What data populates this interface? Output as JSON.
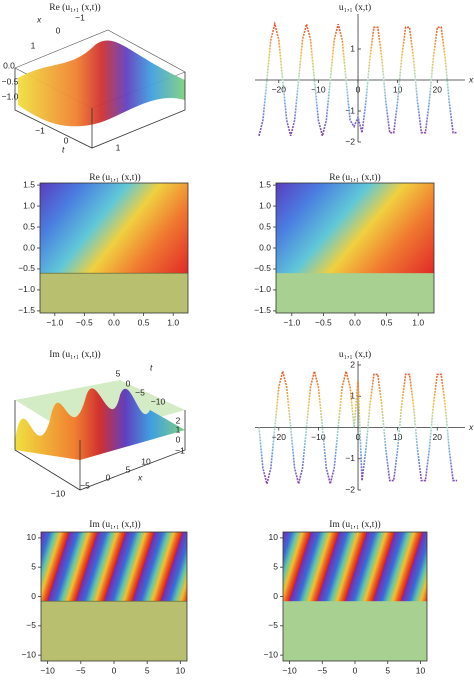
{
  "chart_data": [
    {
      "type": "surface3d",
      "title": "Re (u₁,₁ (x,t))",
      "xlabel": "x",
      "tlabel": "t",
      "xticks": [
        1,
        0,
        {
          "value": -1,
          "label": "−1"
        }
      ],
      "zticks": [
        {
          "value": 0,
          "label": "0.0"
        },
        {
          "value": -0.5,
          "label": "−0.5"
        },
        {
          "value": -1,
          "label": "−1.0"
        }
      ],
      "tticks": [
        {
          "value": -1,
          "label": "−1"
        },
        0,
        1
      ]
    },
    {
      "type": "line",
      "title": "u₁,₁ (x,t)",
      "xlabel": "x",
      "x": [
        -25,
        -24,
        -23,
        -22,
        -21,
        -20,
        -19,
        -18,
        -17,
        -16,
        -15,
        -14,
        -13,
        -12,
        -11,
        -10,
        -9,
        -8,
        -7,
        -6,
        -5,
        -4,
        -3,
        -2,
        -1,
        0,
        1,
        2,
        3,
        4,
        5,
        6,
        7,
        8,
        9,
        10,
        11,
        12,
        13,
        14,
        15,
        16,
        17,
        18,
        19,
        20,
        21,
        22,
        23,
        24,
        25
      ],
      "values": [
        -1.8,
        -1.3,
        0,
        1.3,
        1.8,
        1.3,
        0,
        -1.3,
        -1.8,
        -1.3,
        0,
        1.3,
        1.8,
        1.3,
        0,
        -1.3,
        -1.8,
        -1.3,
        0,
        1.3,
        1.8,
        1.3,
        0,
        -1.3,
        -1.5,
        -1.2,
        -1.7,
        -0.7,
        0.7,
        1.7,
        1.7,
        0.7,
        -0.7,
        -1.7,
        -1.7,
        -0.7,
        0.7,
        1.7,
        1.7,
        0.7,
        -0.7,
        -1.7,
        -1.7,
        -0.7,
        0.7,
        1.7,
        1.7,
        0.7,
        -0.7,
        -1.7,
        -1.7
      ],
      "xlim": [
        -26,
        27
      ],
      "ylim": [
        -2,
        2
      ],
      "xticks": [
        {
          "value": -20,
          "label": "−20"
        },
        {
          "value": -10,
          "label": "−10"
        },
        0,
        10,
        20
      ],
      "yticks": [
        1,
        {
          "value": -1,
          "label": "−1"
        },
        {
          "value": -2,
          "label": "−2"
        }
      ]
    },
    {
      "type": "contour",
      "title": "Re (u₁,₁ (x,t))",
      "xlim": [
        -1.25,
        1.25
      ],
      "ylim": [
        -1.55,
        1.55
      ],
      "xticks": [
        {
          "value": -1,
          "label": "−1.0"
        },
        {
          "value": -0.5,
          "label": "−0.5"
        },
        {
          "value": 0,
          "label": "0.0"
        },
        0.5,
        {
          "value": 1,
          "label": "1.0"
        }
      ],
      "yticks": [
        1.5,
        {
          "value": 1,
          "label": "1.0"
        },
        0.5,
        {
          "value": 0,
          "label": "0.0"
        },
        {
          "value": -0.5,
          "label": "−0.5"
        },
        {
          "value": -1,
          "label": "−1.0"
        },
        {
          "value": -1.5,
          "label": "−1.5"
        }
      ]
    },
    {
      "type": "density",
      "title": "Re (u₁,₁ (x,t))",
      "xlim": [
        -1.25,
        1.25
      ],
      "ylim": [
        -1.55,
        1.55
      ],
      "xticks": [
        {
          "value": -1,
          "label": "−1.0"
        },
        {
          "value": -0.5,
          "label": "−0.5"
        },
        {
          "value": 0,
          "label": "0.0"
        },
        0.5,
        {
          "value": 1,
          "label": "1.0"
        }
      ],
      "yticks": [
        1.5,
        {
          "value": 1,
          "label": "1.0"
        },
        0.5,
        {
          "value": 0,
          "label": "0.0"
        },
        {
          "value": -0.5,
          "label": "−0.5"
        },
        {
          "value": -1,
          "label": "−1.0"
        },
        {
          "value": -1.5,
          "label": "−1.5"
        }
      ]
    },
    {
      "type": "surface3d",
      "title": "Im (u₁,₁ (x,t))",
      "xlabel": "x",
      "tlabel": "t",
      "xticks": [
        {
          "value": -10,
          "label": "−10"
        },
        {
          "value": -5,
          "label": "−5"
        },
        0,
        5,
        10
      ],
      "zticks": [
        2,
        1,
        0,
        {
          "value": -1,
          "label": "−1"
        }
      ],
      "tticks": [
        5,
        0,
        {
          "value": -5,
          "label": "−5"
        },
        {
          "value": -10,
          "label": "−10"
        }
      ]
    },
    {
      "type": "line",
      "title": "u₁,₁ (x,t)",
      "xlabel": "x",
      "x": [
        -25,
        -24,
        -23,
        -22,
        -21,
        -20,
        -19,
        -18,
        -17,
        -16,
        -15,
        -14,
        -13,
        -12,
        -11,
        -10,
        -9,
        -8,
        -7,
        -6,
        -5,
        -4,
        -3,
        -2,
        -1,
        0,
        1,
        2,
        3,
        4,
        5,
        6,
        7,
        8,
        9,
        10,
        11,
        12,
        13,
        14,
        15,
        16,
        17,
        18,
        19,
        20,
        21,
        22,
        23,
        24,
        25
      ],
      "values": [
        0,
        -1.3,
        -1.8,
        -1.3,
        0,
        1.3,
        1.8,
        1.3,
        0,
        -1.3,
        -1.8,
        -1.3,
        0,
        1.3,
        1.8,
        1.3,
        0,
        -1.3,
        -1.8,
        -1.3,
        0,
        1.3,
        1.8,
        1.3,
        0,
        1.5,
        -1.7,
        -0.7,
        0.7,
        1.7,
        1.7,
        0.7,
        -0.7,
        -1.7,
        -1.7,
        -0.7,
        0.7,
        1.7,
        1.7,
        0.7,
        -0.7,
        -1.7,
        -1.7,
        -0.7,
        0.7,
        1.7,
        1.7,
        0.7,
        -0.7,
        -1.7,
        -1.7
      ],
      "xlim": [
        -26,
        27
      ],
      "ylim": [
        -2,
        2
      ],
      "xticks": [
        {
          "value": -20,
          "label": "−20"
        },
        {
          "value": -10,
          "label": "−10"
        },
        0,
        10,
        20
      ],
      "yticks": [
        2,
        1,
        {
          "value": -1,
          "label": "−1"
        },
        {
          "value": -2,
          "label": "−2"
        }
      ]
    },
    {
      "type": "contour",
      "title": "Im (u₁,₁ (x,t))",
      "xlim": [
        -11,
        11
      ],
      "ylim": [
        -11,
        11
      ],
      "xticks": [
        {
          "value": -10,
          "label": "−10"
        },
        {
          "value": -5,
          "label": "−5"
        },
        0,
        5,
        10
      ],
      "yticks": [
        10,
        5,
        0,
        {
          "value": -5,
          "label": "−5"
        },
        {
          "value": -10,
          "label": "−10"
        }
      ]
    },
    {
      "type": "density",
      "title": "Im (u₁,₁ (x,t))",
      "xlim": [
        -11,
        11
      ],
      "ylim": [
        -11,
        11
      ],
      "xticks": [
        {
          "value": -10,
          "label": "−10"
        },
        {
          "value": -5,
          "label": "−5"
        },
        0,
        5,
        10
      ],
      "yticks": [
        10,
        5,
        0,
        {
          "value": -5,
          "label": "−5"
        },
        {
          "value": -10,
          "label": "−10"
        }
      ]
    }
  ]
}
